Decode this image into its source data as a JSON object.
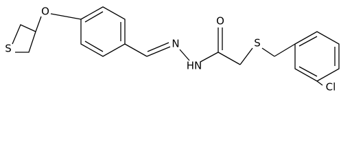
{
  "atoms": [
    {
      "label": "S"
    },
    {
      "label": "O"
    },
    {
      "label": "N"
    },
    {
      "label": "HN"
    },
    {
      "label": "O"
    },
    {
      "label": "S"
    },
    {
      "label": "Cl"
    }
  ]
}
